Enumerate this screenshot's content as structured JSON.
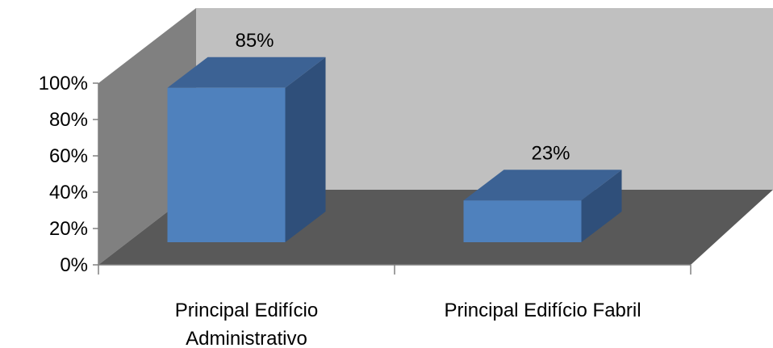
{
  "chart_data": {
    "type": "bar",
    "variant": "3d-column",
    "title": "",
    "xlabel": "",
    "ylabel": "",
    "categories": [
      "Principal Edifício Administrativo",
      "Principal Edifício Fabril"
    ],
    "category_lines": [
      [
        "Principal Edifício",
        "Administrativo"
      ],
      [
        "Principal Edifício Fabril"
      ]
    ],
    "values": [
      85,
      23
    ],
    "data_labels": [
      "85%",
      "23%"
    ],
    "ylim": [
      0,
      100
    ],
    "yticks": [
      0,
      20,
      40,
      60,
      80,
      100
    ],
    "ytick_labels": [
      "0%",
      "20%",
      "40%",
      "60%",
      "80%",
      "100%"
    ],
    "grid": false,
    "legend": "none",
    "colors": {
      "bar_front": "#4F81BD",
      "bar_top": "#3C6294",
      "bar_side": "#2F4F7A",
      "back_wall": "#C0C0C0",
      "side_wall": "#808080",
      "floor": "#595959",
      "axis": "#808080"
    }
  }
}
